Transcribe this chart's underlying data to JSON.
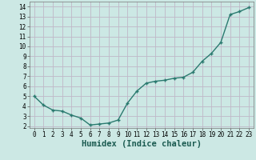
{
  "xlabel": "Humidex (Indice chaleur)",
  "x_values": [
    0,
    1,
    2,
    3,
    4,
    5,
    6,
    7,
    8,
    9,
    10,
    11,
    12,
    13,
    14,
    15,
    16,
    17,
    18,
    19,
    20,
    21,
    22,
    23
  ],
  "y_values": [
    5.0,
    4.1,
    3.6,
    3.5,
    3.1,
    2.8,
    2.1,
    2.2,
    2.3,
    2.6,
    4.3,
    5.5,
    6.3,
    6.5,
    6.6,
    6.8,
    6.9,
    7.4,
    8.5,
    9.3,
    10.4,
    13.2,
    13.5,
    13.9
  ],
  "line_color": "#2a7a6f",
  "marker": "P",
  "marker_size": 2.5,
  "bg_color": "#cce8e4",
  "grid_color": "#c0b8c8",
  "ylim": [
    1.8,
    14.5
  ],
  "xlim": [
    -0.5,
    23.5
  ],
  "yticks": [
    2,
    3,
    4,
    5,
    6,
    7,
    8,
    9,
    10,
    11,
    12,
    13,
    14
  ],
  "xticks": [
    0,
    1,
    2,
    3,
    4,
    5,
    6,
    7,
    8,
    9,
    10,
    11,
    12,
    13,
    14,
    15,
    16,
    17,
    18,
    19,
    20,
    21,
    22,
    23
  ],
  "tick_fontsize": 5.5,
  "xlabel_fontsize": 7.5,
  "line_width": 1.0
}
